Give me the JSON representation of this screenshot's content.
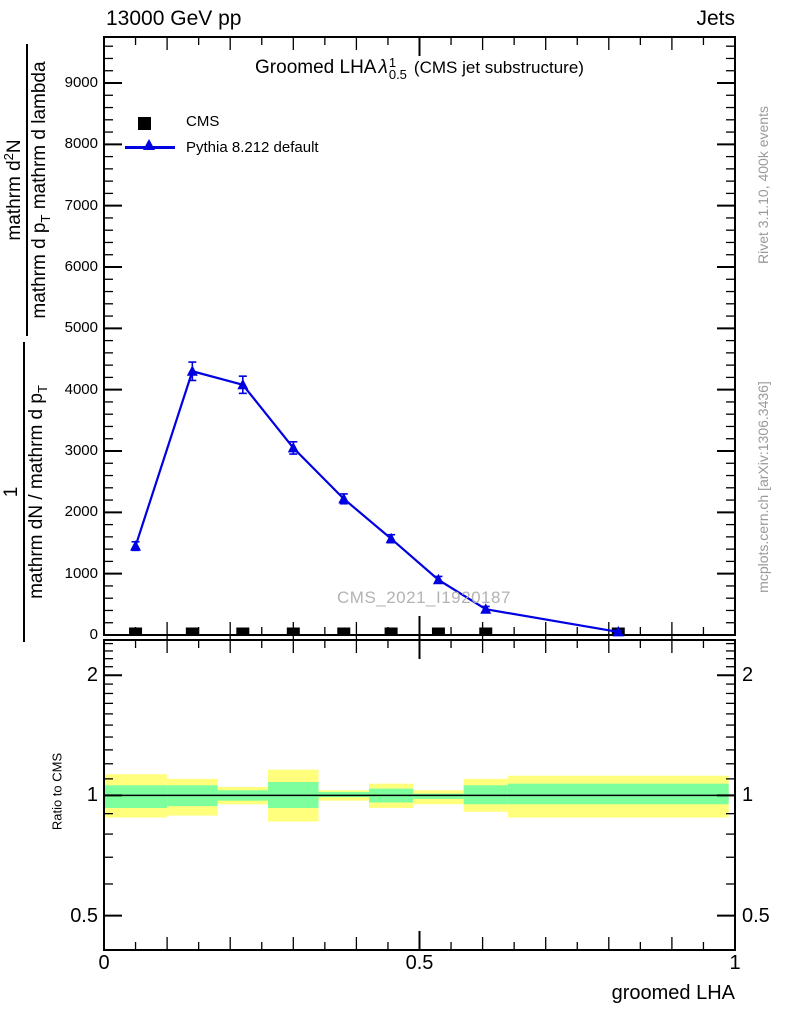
{
  "header": {
    "left": "13000 GeV pp",
    "right": "Jets"
  },
  "plot_title": {
    "prefix": "Groomed LHA",
    "symbol": "λ",
    "superscript": "1",
    "subscript": "0.5",
    "suffix": "(CMS jet substructure)"
  },
  "legend": {
    "cms_label": "CMS",
    "pythia_label": "Pythia 8.212 default"
  },
  "watermark": "CMS_2021_I1920187",
  "right_margin_notes": {
    "top": "Rivet 3.1.10,  400k events",
    "bottom": "mcplots.cern.ch [arXiv:1306.3436]"
  },
  "y_axis_label": {
    "upper_fraction": {
      "numerator_parts": [
        "mathrm d",
        "2",
        "N"
      ],
      "denominator_parts": [
        "mathrm d p",
        "T",
        " mathrm d lambda"
      ]
    },
    "lower_fraction": {
      "numerator": "1",
      "denominator_parts": [
        "mathrm dN / mathrm d p",
        "T"
      ]
    }
  },
  "ratio_axis_label": "Ratio to CMS",
  "x_axis_label": "groomed LHA",
  "colors": {
    "pythia_blue": "#0000e0",
    "cms_black": "#000000",
    "band_yellow": "#ffff7d",
    "band_green": "#7dff9e",
    "gray_note": "#999999",
    "watermark_gray": "#b3b3b3"
  },
  "chart_data": [
    {
      "id": "main",
      "type": "line",
      "title": "Groomed LHA lambda^1_0.5 (CMS jet substructure)",
      "xlabel": "groomed LHA",
      "ylabel": "1 / (dN/dp_T) * d2N / (dp_T dlambda)",
      "xlim": [
        0,
        1
      ],
      "ylim": [
        0,
        9750
      ],
      "grid": false,
      "legend_position": "top-left",
      "x_ticks": [
        {
          "value": 0,
          "label": "0"
        },
        {
          "value": 0.5,
          "label": "0.5"
        },
        {
          "value": 1,
          "label": "1"
        }
      ],
      "x_minor_step": 0.05,
      "x_medium_step": 0.1,
      "y_ticks": [
        {
          "value": 0,
          "label": "0"
        },
        {
          "value": 1000,
          "label": "1000"
        },
        {
          "value": 2000,
          "label": "2000"
        },
        {
          "value": 3000,
          "label": "3000"
        },
        {
          "value": 4000,
          "label": "4000"
        },
        {
          "value": 5000,
          "label": "5000"
        },
        {
          "value": 6000,
          "label": "6000"
        },
        {
          "value": 7000,
          "label": "7000"
        },
        {
          "value": 8000,
          "label": "8000"
        },
        {
          "value": 9000,
          "label": "9000"
        }
      ],
      "y_minor_step": 200,
      "series": [
        {
          "name": "CMS",
          "marker": "filled-square",
          "color": "#000000",
          "line": false,
          "x": [
            0.05,
            0.14,
            0.22,
            0.3,
            0.38,
            0.455,
            0.53,
            0.605,
            0.815
          ],
          "y": [
            0,
            0,
            0,
            0,
            0,
            0,
            0,
            0,
            0
          ]
        },
        {
          "name": "Pythia 8.212 default",
          "marker": "filled-triangle",
          "color": "#0000e0",
          "line": true,
          "x": [
            0.05,
            0.14,
            0.22,
            0.3,
            0.38,
            0.455,
            0.53,
            0.605,
            0.815
          ],
          "y": [
            1450,
            4300,
            4080,
            3050,
            2220,
            1570,
            900,
            420,
            50
          ],
          "yerr": [
            70,
            150,
            140,
            100,
            80,
            65,
            55,
            45,
            25
          ]
        }
      ]
    },
    {
      "id": "ratio",
      "type": "ratio-bands",
      "ylabel": "Ratio to CMS",
      "yscale": "log",
      "ylim": [
        0.41,
        2.45
      ],
      "y_ticks": [
        {
          "value": 0.5,
          "label": "0.5"
        },
        {
          "value": 1,
          "label": "1"
        },
        {
          "value": 2,
          "label": "2"
        }
      ],
      "reference_line": 1.0,
      "bin_edges": [
        0,
        0.1,
        0.18,
        0.26,
        0.34,
        0.42,
        0.49,
        0.57,
        0.64,
        0.99
      ],
      "yellow_band": {
        "hi": [
          1.13,
          1.1,
          1.05,
          1.16,
          1.03,
          1.07,
          1.03,
          1.1,
          1.12
        ],
        "lo": [
          0.88,
          0.89,
          0.95,
          0.86,
          0.97,
          0.93,
          0.95,
          0.91,
          0.88
        ]
      },
      "green_band": {
        "hi": [
          1.06,
          1.06,
          1.03,
          1.08,
          1.02,
          1.04,
          1.01,
          1.06,
          1.07
        ],
        "lo": [
          0.93,
          0.94,
          0.97,
          0.93,
          0.99,
          0.96,
          0.98,
          0.95,
          0.95
        ]
      }
    }
  ]
}
